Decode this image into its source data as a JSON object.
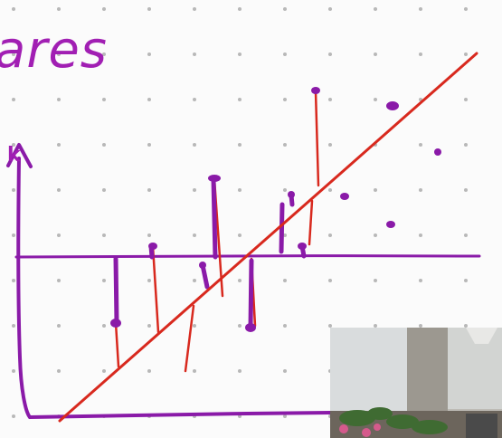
{
  "title_fragment": "ares",
  "y_axis_label": "k",
  "colors": {
    "marker_purple": "#8a1aa8",
    "marker_red": "#d8291e",
    "grid_dot": "#b8b8b8",
    "paper": "#fbfbfb"
  },
  "icons": {
    "webcam": "webcam-feed-thumbnail"
  }
}
